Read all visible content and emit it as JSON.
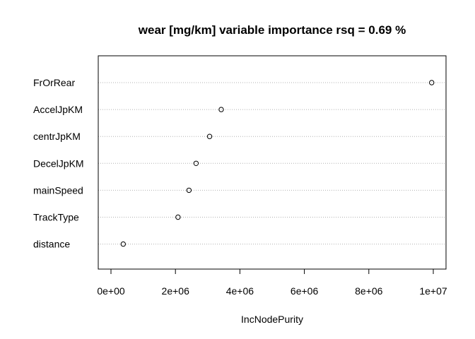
{
  "chart_data": {
    "type": "scatter",
    "title": "wear [mg/km] variable importance rsq = 0.69 %",
    "xlabel": "IncNodePurity",
    "ylabel": "",
    "xlim": [
      0,
      10000000
    ],
    "x_ticks": [
      0,
      2000000,
      4000000,
      6000000,
      8000000,
      10000000
    ],
    "x_tick_labels": [
      "0e+00",
      "2e+06",
      "4e+06",
      "6e+06",
      "8e+06",
      "1e+07"
    ],
    "grid": "dotted horizontal lines per variable",
    "categories": [
      "FrOrRear",
      "AccelJpKM",
      "centrJpKM",
      "DecelJpKM",
      "mainSpeed",
      "TrackType",
      "distance"
    ],
    "values": [
      9950000,
      3420000,
      3060000,
      2640000,
      2420000,
      2080000,
      380000
    ]
  }
}
